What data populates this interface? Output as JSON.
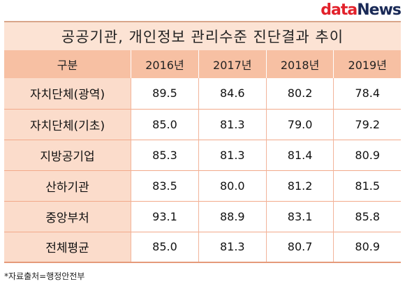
{
  "logo": {
    "part1": "data",
    "part2": "News"
  },
  "title": "공공기관, 개인정보 관리수준 진단결과 추이",
  "header": [
    "구분",
    "2016년",
    "2017년",
    "2018년",
    "2019년"
  ],
  "rows": [
    {
      "label": "자치단체(광역)",
      "values": [
        "89.5",
        "84.6",
        "80.2",
        "78.4"
      ]
    },
    {
      "label": "자치단체(기초)",
      "values": [
        "85.0",
        "81.3",
        "79.0",
        "79.2"
      ]
    },
    {
      "label": "지방공기업",
      "values": [
        "85.3",
        "81.3",
        "81.4",
        "80.9"
      ]
    },
    {
      "label": "산하기관",
      "values": [
        "83.5",
        "80.0",
        "81.2",
        "81.5"
      ]
    },
    {
      "label": "중앙부처",
      "values": [
        "93.1",
        "88.9",
        "83.1",
        "85.8"
      ]
    },
    {
      "label": "전체평균",
      "values": [
        "85.0",
        "81.3",
        "80.7",
        "80.9"
      ]
    }
  ],
  "source": "*자료출처=행정안전부",
  "colors": {
    "header_bg": "#f7c0a3",
    "title_bg": "#fce3d4",
    "label_bg": "#fbdccb",
    "logo_red": "#e2212b",
    "logo_navy": "#1a2a57"
  }
}
